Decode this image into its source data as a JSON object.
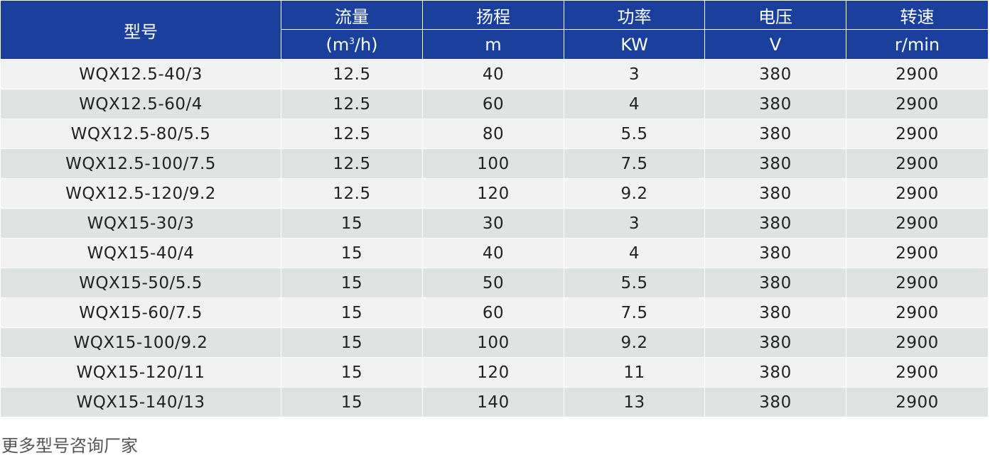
{
  "table": {
    "header": {
      "model": "型号",
      "flow": "流量",
      "flow_unit_pre": "(m",
      "flow_unit_sup": "3",
      "flow_unit_post": "/h)",
      "head": "扬程",
      "head_unit": "m",
      "power": "功率",
      "power_unit": "KW",
      "voltage": "电压",
      "voltage_unit": "V",
      "speed": "转速",
      "speed_unit": "r/min"
    },
    "rows": [
      [
        "WQX12.5-40/3",
        "12.5",
        "40",
        "3",
        "380",
        "2900"
      ],
      [
        "WQX12.5-60/4",
        "12.5",
        "60",
        "4",
        "380",
        "2900"
      ],
      [
        "WQX12.5-80/5.5",
        "12.5",
        "80",
        "5.5",
        "380",
        "2900"
      ],
      [
        "WQX12.5-100/7.5",
        "12.5",
        "100",
        "7.5",
        "380",
        "2900"
      ],
      [
        "WQX12.5-120/9.2",
        "12.5",
        "120",
        "9.2",
        "380",
        "2900"
      ],
      [
        "WQX15-30/3",
        "15",
        "30",
        "3",
        "380",
        "2900"
      ],
      [
        "WQX15-40/4",
        "15",
        "40",
        "4",
        "380",
        "2900"
      ],
      [
        "WQX15-50/5.5",
        "15",
        "50",
        "5.5",
        "380",
        "2900"
      ],
      [
        "WQX15-60/7.5",
        "15",
        "60",
        "7.5",
        "380",
        "2900"
      ],
      [
        "WQX15-100/9.2",
        "15",
        "100",
        "9.2",
        "380",
        "2900"
      ],
      [
        "WQX15-120/11",
        "15",
        "120",
        "11",
        "380",
        "2900"
      ],
      [
        "WQX15-140/13",
        "15",
        "140",
        "13",
        "380",
        "2900"
      ]
    ]
  },
  "footer": {
    "note": "更多型号咨询厂家"
  },
  "colors": {
    "header_bg": "#1a3f9c",
    "row_odd": "#f2f2f2",
    "row_even": "#dfe3e2"
  }
}
